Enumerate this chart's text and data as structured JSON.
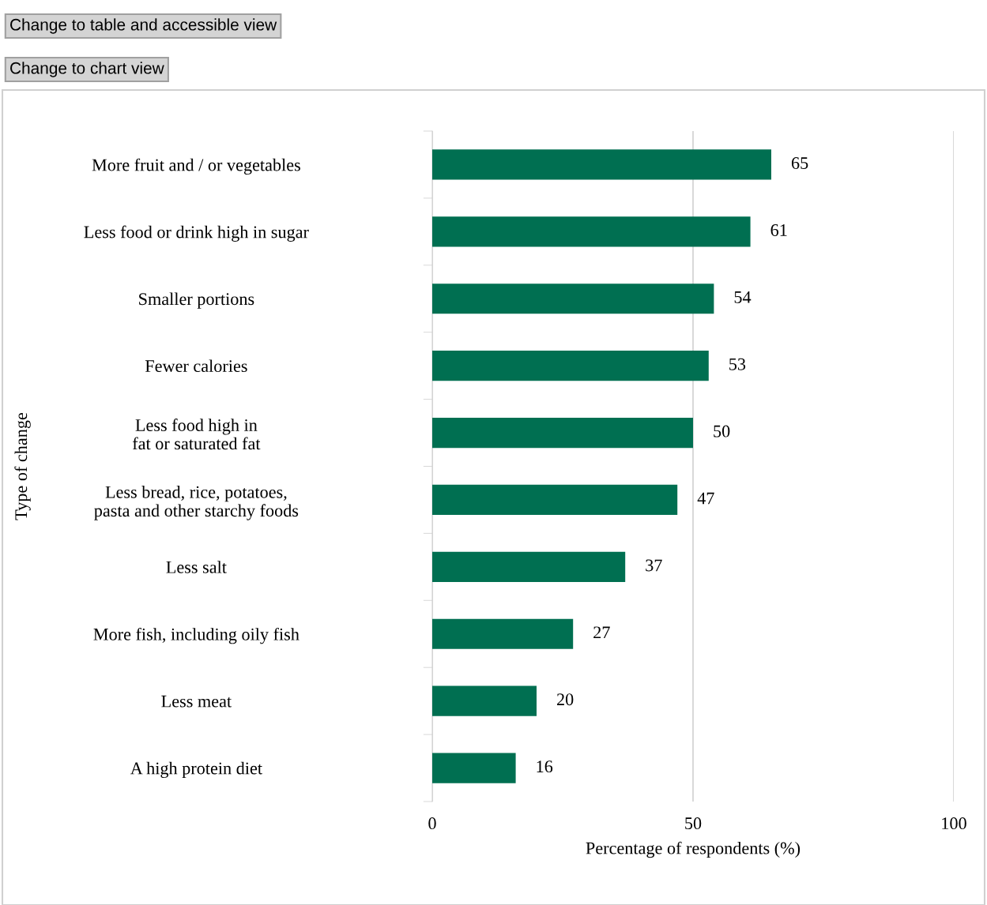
{
  "chart_data": {
    "type": "bar",
    "orientation": "horizontal",
    "xlabel": "Percentage of respondents (%)",
    "ylabel": "Type of change",
    "categories": [
      "More fruit and / or vegetables",
      "Less food or drink high in sugar",
      "Smaller portions",
      "Fewer calories",
      "Less food high in\nfat or saturated fat",
      "Less bread, rice, potatoes,\npasta and other starchy foods",
      "Less salt",
      "More fish, including oily fish",
      "Less meat",
      "A high protein diet"
    ],
    "values": [
      65,
      61,
      54,
      53,
      50,
      47,
      37,
      27,
      20,
      16
    ],
    "color": "#006f51",
    "xlim": [
      0,
      100
    ],
    "xticks": [
      0,
      50,
      100
    ],
    "grid": "x",
    "data_labels": true,
    "legend": false,
    "annotations": [
      "Change to table and accessible view",
      "Change to chart view"
    ]
  }
}
